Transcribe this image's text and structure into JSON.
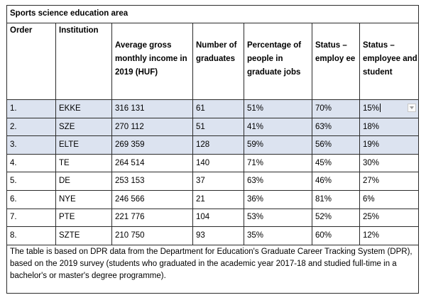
{
  "table": {
    "title": "Sports science education area",
    "headers": {
      "order": "Order",
      "institution": "Institution",
      "income": "Average gross monthly income in 2019 (HUF)",
      "graduates": "Number of graduates",
      "percentage": "Percentage of people in graduate jobs",
      "employee": "Status – employ ee",
      "employee_student": "Status – employee and student"
    },
    "rows": [
      {
        "order": "1.",
        "institution": "EKKE",
        "income": "316 131",
        "graduates": "61",
        "percentage": "51%",
        "employee": "70%",
        "employee_student": "15%"
      },
      {
        "order": "2.",
        "institution": "SZE",
        "income": "270 112",
        "graduates": "51",
        "percentage": "41%",
        "employee": "63%",
        "employee_student": "18%"
      },
      {
        "order": "3.",
        "institution": "ELTE",
        "income": "269 359",
        "graduates": "128",
        "percentage": "59%",
        "employee": "56%",
        "employee_student": "19%"
      },
      {
        "order": "4.",
        "institution": "TE",
        "income": "264 514",
        "graduates": "140",
        "percentage": "71%",
        "employee": "45%",
        "employee_student": "30%"
      },
      {
        "order": "5.",
        "institution": "DE",
        "income": "253 153",
        "graduates": "37",
        "percentage": "63%",
        "employee": "46%",
        "employee_student": "27%"
      },
      {
        "order": "6.",
        "institution": "NYE",
        "income": "246 566",
        "graduates": "21",
        "percentage": "36%",
        "employee": "81%",
        "employee_student": "6%"
      },
      {
        "order": "7.",
        "institution": "PTE",
        "income": "221 776",
        "graduates": "104",
        "percentage": "53%",
        "employee": "52%",
        "employee_student": "25%"
      },
      {
        "order": "8.",
        "institution": "SZTE",
        "income": "210 750",
        "graduates": "93",
        "percentage": "35%",
        "employee": "60%",
        "employee_student": "12%"
      }
    ],
    "highlighted_rows": [
      0,
      1,
      2
    ],
    "footer": "The table is based on DPR data from the Department for Education's Graduate Career Tracking System (DPR), based on the 2019 survey (students who graduated in the academic year 2017-18 and studied full-time in a bachelor's or master's degree programme)."
  },
  "colors": {
    "highlight": "#dce3f0",
    "border": "#2b2b2b"
  },
  "icons": {
    "cell_dropdown": "dropdown-arrow-icon"
  }
}
